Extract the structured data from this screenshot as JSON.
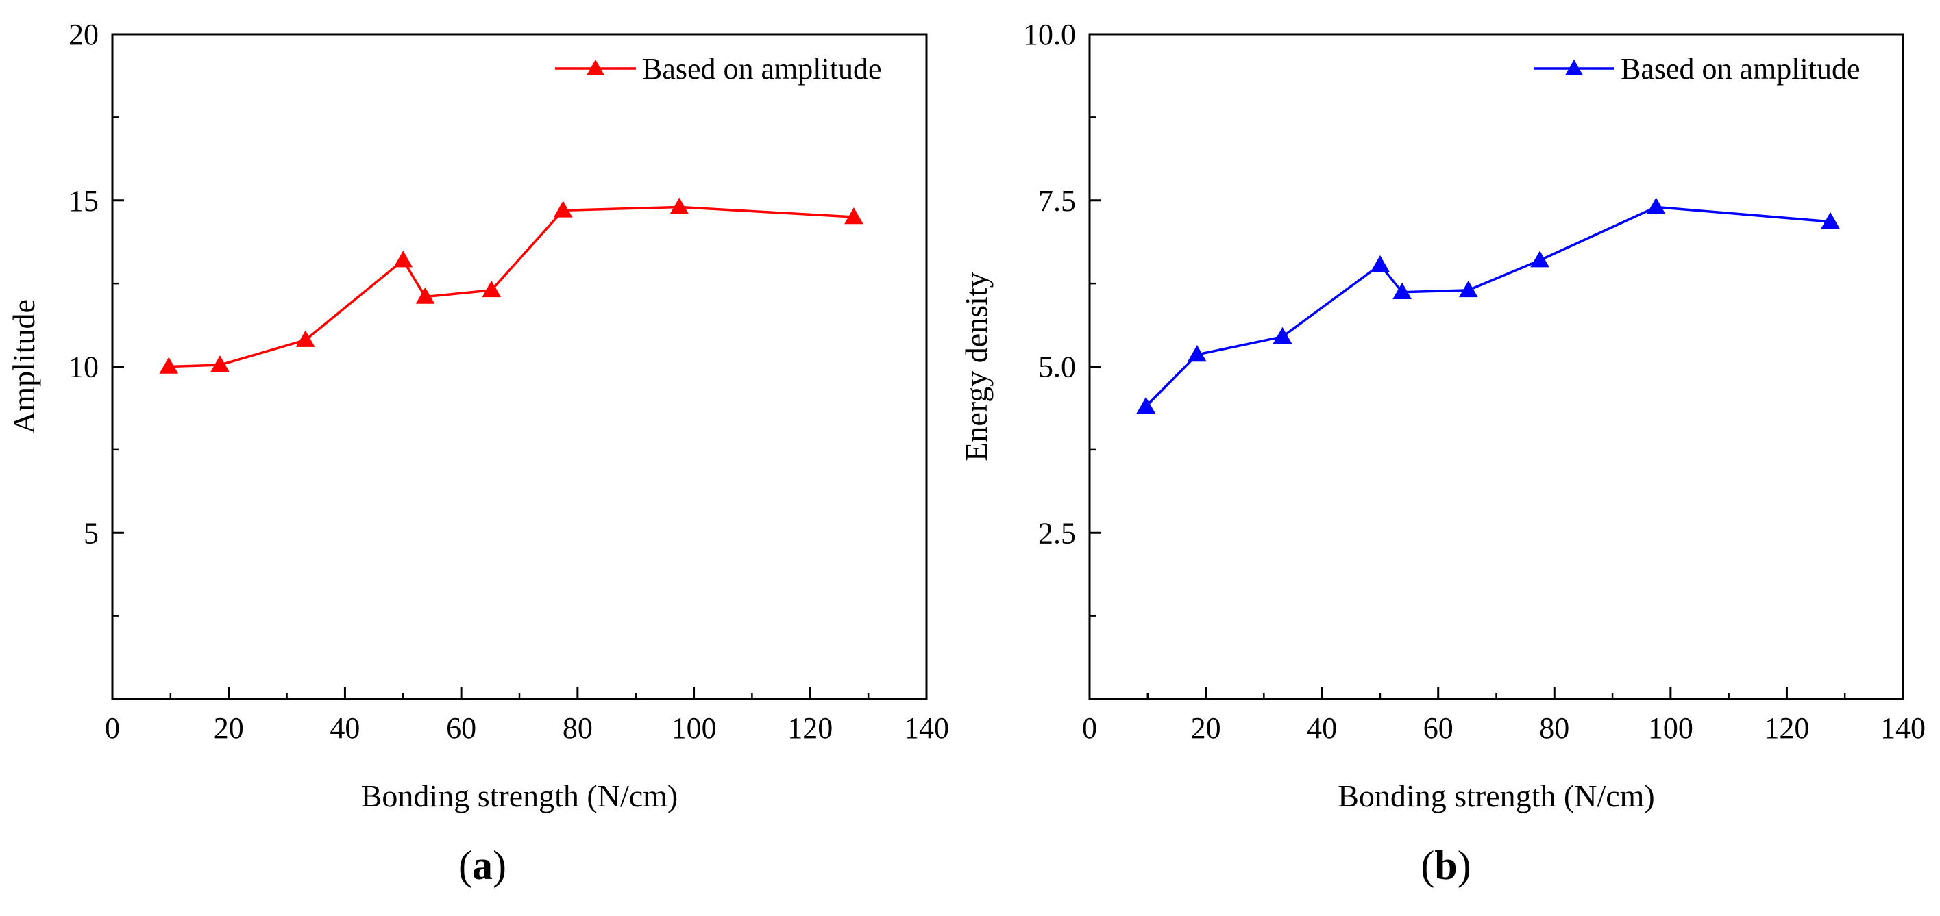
{
  "chart_data": [
    {
      "type": "line",
      "panel": "a",
      "panel_label": {
        "open": "(",
        "letter": "a",
        "close": ")"
      },
      "title": "",
      "xlabel": "Bonding strength (N/cm)",
      "ylabel": "Amplitude",
      "xlim": [
        0,
        140
      ],
      "ylim": [
        0,
        20
      ],
      "xticks": [
        0,
        20,
        40,
        60,
        80,
        100,
        120,
        140
      ],
      "xtick_labels": [
        "0",
        "20",
        "40",
        "60",
        "80",
        "100",
        "120",
        "140"
      ],
      "yticks": [
        5,
        10,
        15,
        20
      ],
      "ytick_labels": [
        "5",
        "10",
        "15",
        "20"
      ],
      "y_minor_step": 2.5,
      "x_minor_step": 10,
      "legend_position": "top-right",
      "series": [
        {
          "name": "Based on amplitude",
          "color": "#ff0000",
          "marker": "triangle",
          "x": [
            9.7,
            18.5,
            33.2,
            50.0,
            53.8,
            65.2,
            77.5,
            97.5,
            127.5
          ],
          "y": [
            10.0,
            10.05,
            10.8,
            13.2,
            12.1,
            12.3,
            14.7,
            14.8,
            14.5
          ]
        }
      ]
    },
    {
      "type": "line",
      "panel": "b",
      "panel_label": {
        "open": "(",
        "letter": "b",
        "close": ")"
      },
      "title": "",
      "xlabel": "Bonding strength (N/cm)",
      "ylabel": "Energy density",
      "xlim": [
        0,
        140
      ],
      "ylim": [
        0,
        10
      ],
      "xticks": [
        0,
        20,
        40,
        60,
        80,
        100,
        120,
        140
      ],
      "xtick_labels": [
        "0",
        "20",
        "40",
        "60",
        "80",
        "100",
        "120",
        "140"
      ],
      "yticks": [
        2.5,
        5.0,
        7.5,
        10.0
      ],
      "ytick_labels": [
        "2.5",
        "5.0",
        "7.5",
        "10.0"
      ],
      "y_minor_step": 1.25,
      "x_minor_step": 10,
      "legend_position": "top-right",
      "series": [
        {
          "name": "Based on amplitude",
          "color": "#0000ff",
          "marker": "triangle",
          "x": [
            9.7,
            18.5,
            33.2,
            50.0,
            53.8,
            65.2,
            77.5,
            97.5,
            127.5
          ],
          "y": [
            4.4,
            5.18,
            5.45,
            6.53,
            6.12,
            6.15,
            6.6,
            7.4,
            7.18
          ]
        }
      ]
    }
  ]
}
